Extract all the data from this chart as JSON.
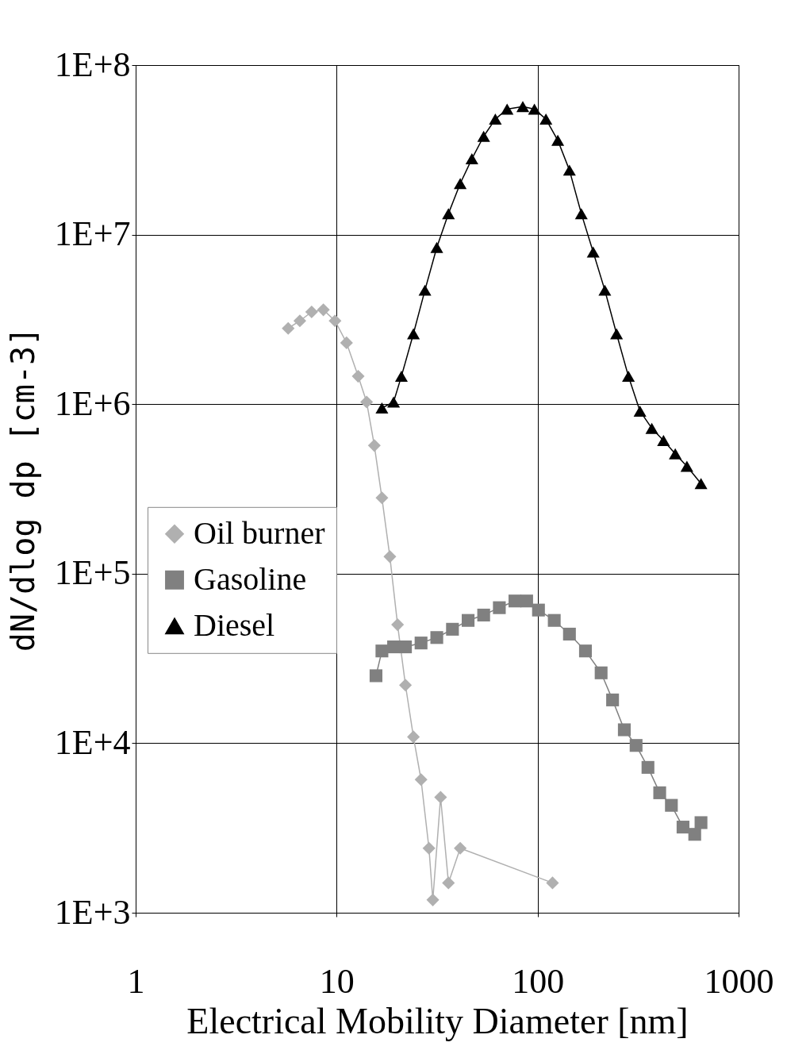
{
  "chart_data": {
    "type": "line",
    "xlabel": "Electrical Mobility Diameter [nm]",
    "ylabel": "dN/dlog dp [cm-3]",
    "log": "xy",
    "grid": true,
    "legend": "left",
    "xlim": [
      1,
      1000
    ],
    "xticks": [
      1,
      10,
      100,
      1000
    ],
    "ylim": [
      1000,
      100000000
    ],
    "yticks": [
      {
        "value": 1000,
        "label": "1E+3"
      },
      {
        "value": 10000,
        "label": "1E+4"
      },
      {
        "value": 100000,
        "label": "1E+5"
      },
      {
        "value": 1000000,
        "label": "1E+6"
      },
      {
        "value": 10000000,
        "label": "1E+7"
      },
      {
        "value": 100000000,
        "label": "1E+8"
      }
    ],
    "series": [
      {
        "name": "Oil burner",
        "color": "#b0b0b0",
        "marker": "diamond",
        "x": [
          5.74,
          6.56,
          7.51,
          8.59,
          9.82,
          11.2,
          12.8,
          14.1,
          15.4,
          16.8,
          18.4,
          20.1,
          22.0,
          24.1,
          26.3,
          28.8,
          30.1,
          32.9,
          36.0,
          41.2,
          118.6
        ],
        "values": [
          2800000,
          3100000,
          3500000,
          3600000,
          3100000,
          2300000,
          1460000,
          1030000,
          570000,
          280000,
          126000,
          50000,
          22000,
          10900,
          6100,
          2400,
          1190,
          4800,
          1500,
          2400,
          1500
        ]
      },
      {
        "name": "Gasoline",
        "color": "#808080",
        "marker": "square",
        "x": [
          15.7,
          16.8,
          19.2,
          22.0,
          26.3,
          31.5,
          37.7,
          45.1,
          53.9,
          64.5,
          77.1,
          88.2,
          101,
          121,
          144,
          173,
          207,
          236,
          270,
          309,
          354,
          405,
          463,
          529,
          605,
          650
        ],
        "values": [
          25000,
          35000,
          37000,
          37000,
          39000,
          42000,
          47000,
          53000,
          57000,
          63000,
          69000,
          69000,
          61000,
          53000,
          44000,
          35000,
          26000,
          18000,
          12000,
          9700,
          7200,
          5100,
          4300,
          3200,
          2900,
          3400
        ]
      },
      {
        "name": "Diesel",
        "color": "#000000",
        "marker": "triangle",
        "x": [
          16.8,
          19.2,
          21.0,
          24.1,
          27.5,
          31.5,
          36.0,
          41.2,
          47.1,
          53.9,
          61.6,
          70.5,
          84.4,
          96.4,
          110,
          126,
          144,
          165,
          189,
          216,
          247,
          283,
          323,
          370,
          423,
          484,
          553,
          650
        ],
        "values": [
          950000,
          1030000,
          1460000,
          2600000,
          4700000,
          8400000,
          13300000,
          20000000,
          28000000,
          38000000,
          48000000,
          55000000,
          57000000,
          55000000,
          48000000,
          36000000,
          24000000,
          13300000,
          7900000,
          4700000,
          2600000,
          1460000,
          910000,
          720000,
          610000,
          510000,
          430000,
          340000
        ]
      }
    ]
  }
}
